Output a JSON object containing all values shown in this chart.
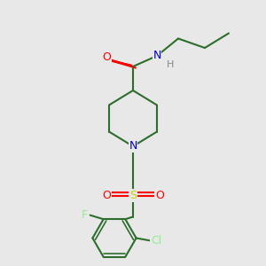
{
  "bg_color": "#e8e8e8",
  "bond_color": "#2d6e2d",
  "bond_width": 1.5,
  "atom_colors": {
    "O": "#ff0000",
    "N": "#0000cc",
    "S": "#cccc00",
    "F": "#90ee90",
    "Cl": "#90ee90",
    "H": "#888888",
    "C": "#2d6e2d"
  },
  "font_size": 9
}
